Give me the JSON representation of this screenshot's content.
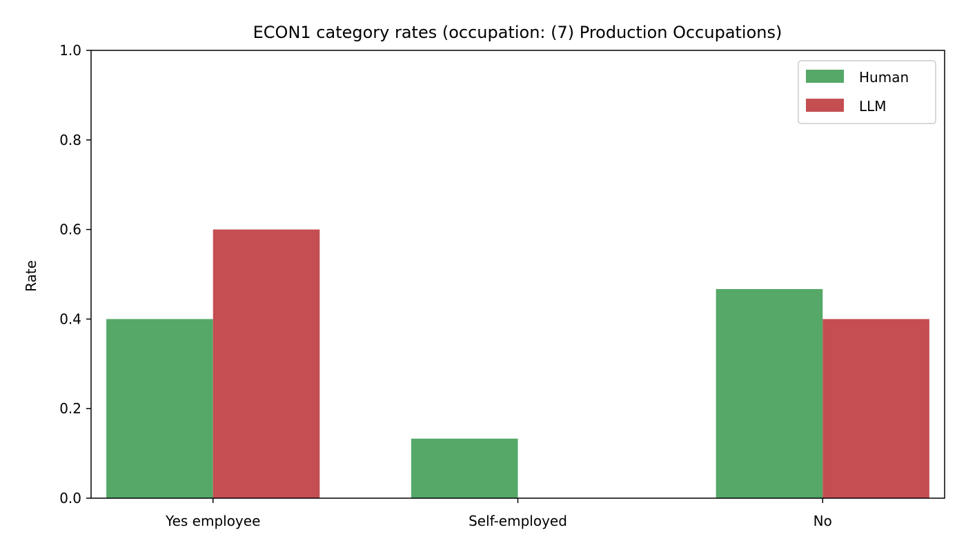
{
  "colors": {
    "human": "#55a868",
    "llm": "#c44e52",
    "axis": "#000000",
    "legend_border": "#cccccc"
  },
  "chart_data": {
    "type": "bar",
    "title": "ECON1 category rates (occupation: (7) Production Occupations)",
    "xlabel": "",
    "ylabel": "Rate",
    "ylim": [
      0,
      1.0
    ],
    "yticks": [
      "0.0",
      "0.2",
      "0.4",
      "0.6",
      "0.8",
      "1.0"
    ],
    "categories": [
      "Yes employee",
      "Self-employed",
      "No"
    ],
    "series": [
      {
        "name": "Human",
        "values": [
          0.4,
          0.133,
          0.467
        ]
      },
      {
        "name": "LLM",
        "values": [
          0.6,
          0.0,
          0.4
        ]
      }
    ],
    "legend_position": "top-right",
    "grid": false
  }
}
